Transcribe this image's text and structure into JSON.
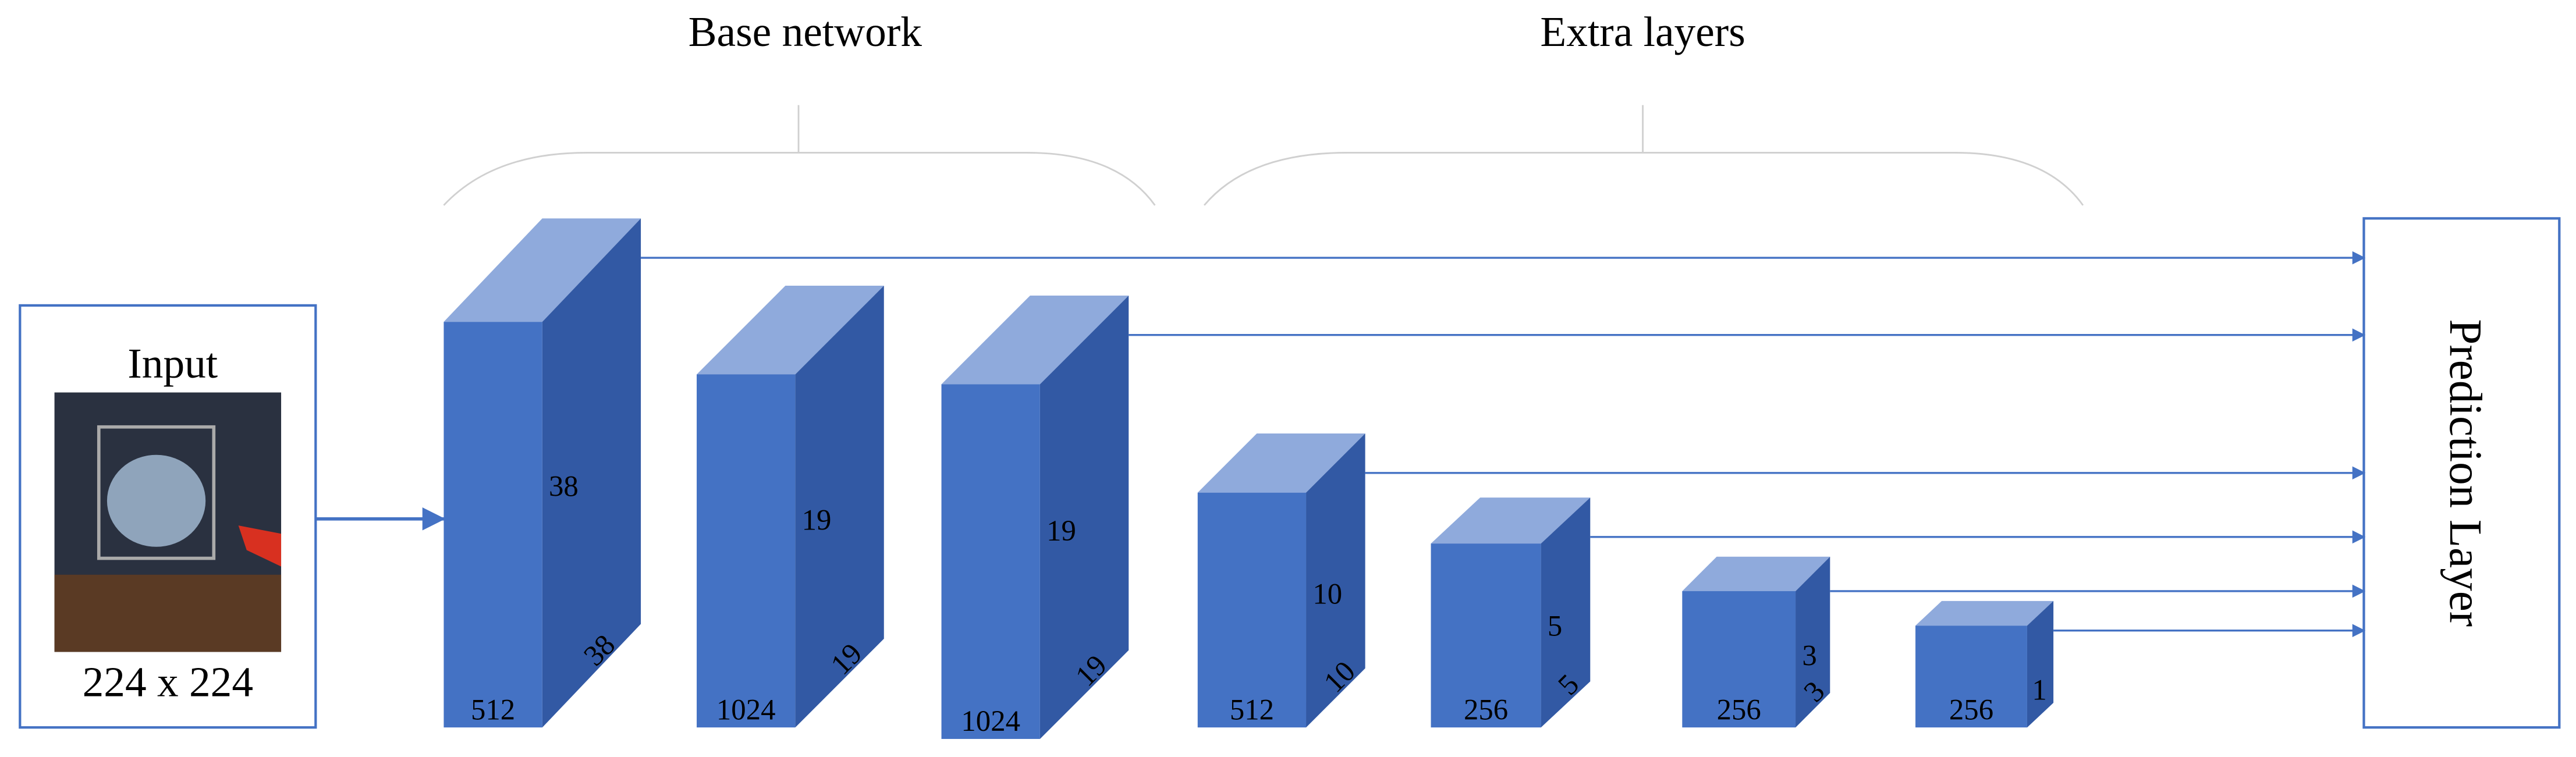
{
  "sections": [
    {
      "label": "Base network"
    },
    {
      "label": "Extra layers"
    }
  ],
  "input": {
    "label": "Input",
    "size": "224 x 224"
  },
  "blocks": [
    {
      "channels": "512",
      "height": "38",
      "width": "38"
    },
    {
      "channels": "1024",
      "height": "19",
      "width": "19"
    },
    {
      "channels": "1024",
      "height": "19",
      "width": "19"
    },
    {
      "channels": "512",
      "height": "10",
      "width": "10"
    },
    {
      "channels": "256",
      "height": "5",
      "width": "5"
    },
    {
      "channels": "256",
      "height": "3",
      "width": "3"
    },
    {
      "channels": "256",
      "height": "1"
    }
  ],
  "prediction": {
    "label": "Prediction Layer"
  }
}
